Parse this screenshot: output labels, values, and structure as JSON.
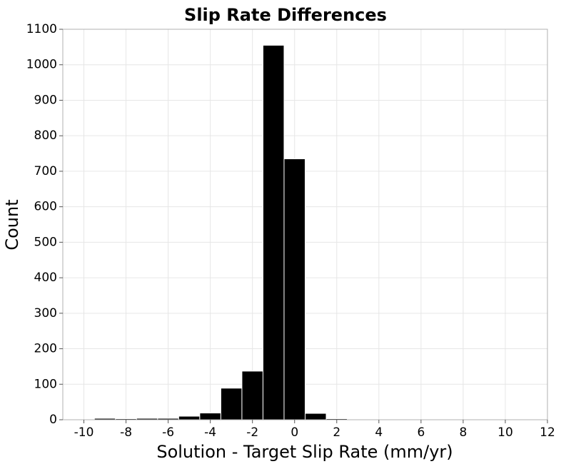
{
  "chart_data": {
    "type": "bar",
    "title": "Slip Rate Differences",
    "xlabel": "Solution - Target Slip Rate (mm/yr)",
    "ylabel": "Count",
    "xlim": [
      -11,
      12
    ],
    "ylim": [
      0,
      1100
    ],
    "x_ticks": [
      -10,
      -8,
      -6,
      -4,
      -2,
      0,
      2,
      4,
      6,
      8,
      10,
      12
    ],
    "y_ticks": [
      0,
      100,
      200,
      300,
      400,
      500,
      600,
      700,
      800,
      900,
      1000,
      1100
    ],
    "bin_width": 1,
    "grid": true,
    "bars": [
      {
        "x": -10,
        "value": 1
      },
      {
        "x": -9,
        "value": 4
      },
      {
        "x": -8,
        "value": 3
      },
      {
        "x": -7,
        "value": 4
      },
      {
        "x": -6,
        "value": 4
      },
      {
        "x": -5,
        "value": 10
      },
      {
        "x": -4,
        "value": 19
      },
      {
        "x": -3,
        "value": 89
      },
      {
        "x": -2,
        "value": 137
      },
      {
        "x": -1,
        "value": 1055
      },
      {
        "x": 0,
        "value": 735
      },
      {
        "x": 1,
        "value": 18
      },
      {
        "x": 2,
        "value": 3
      },
      {
        "x": 3,
        "value": 2
      },
      {
        "x": 4,
        "value": 1
      },
      {
        "x": 5,
        "value": 0
      },
      {
        "x": 6,
        "value": 0
      },
      {
        "x": 7,
        "value": 0
      },
      {
        "x": 8,
        "value": 0
      },
      {
        "x": 9,
        "value": 0
      },
      {
        "x": 10,
        "value": 0
      },
      {
        "x": 11,
        "value": 0
      }
    ],
    "colors": {
      "bar": "#000000",
      "grid": "#e6e6e6",
      "frame": "#b0b0b0"
    }
  }
}
